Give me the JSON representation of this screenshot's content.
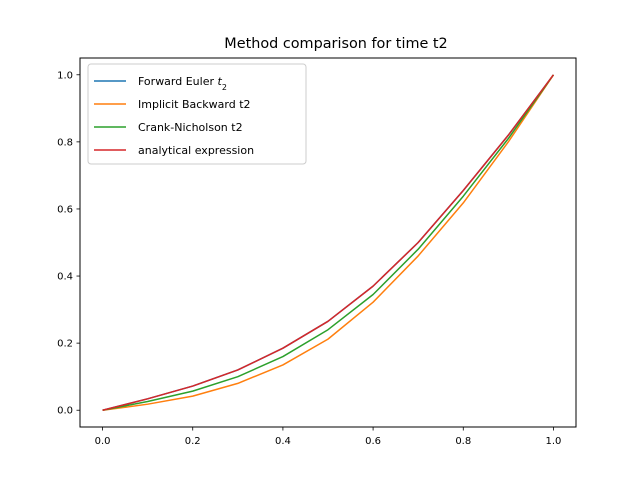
{
  "chart_data": {
    "type": "line",
    "title": "Method comparison for time t2",
    "xlabel": "",
    "ylabel": "",
    "xlim": [
      -0.05,
      1.05
    ],
    "ylim": [
      -0.05,
      1.05
    ],
    "xticks": [
      0.0,
      0.2,
      0.4,
      0.6,
      0.8,
      1.0
    ],
    "yticks": [
      0.0,
      0.2,
      0.4,
      0.6,
      0.8,
      1.0
    ],
    "xtick_labels": [
      "0.0",
      "0.2",
      "0.4",
      "0.6",
      "0.8",
      "1.0"
    ],
    "ytick_labels": [
      "0.0",
      "0.2",
      "0.4",
      "0.6",
      "0.8",
      "1.0"
    ],
    "grid": false,
    "legend": "upper-left",
    "x": [
      0.0,
      0.1,
      0.2,
      0.3,
      0.4,
      0.5,
      0.6,
      0.7,
      0.8,
      0.9,
      1.0
    ],
    "series": [
      {
        "name": "Forward Euler t",
        "subscript": "2",
        "color": "#1f77b4",
        "values": [
          0.0,
          0.034,
          0.072,
          0.12,
          0.185,
          0.265,
          0.37,
          0.5,
          0.655,
          0.82,
          1.0
        ]
      },
      {
        "name": "Implicit Backward t2",
        "color": "#ff7f0e",
        "values": [
          0.0,
          0.018,
          0.042,
          0.08,
          0.135,
          0.212,
          0.322,
          0.46,
          0.618,
          0.8,
          1.0
        ]
      },
      {
        "name": "Crank-Nicholson t2",
        "color": "#2ca02c",
        "values": [
          0.0,
          0.026,
          0.057,
          0.1,
          0.16,
          0.24,
          0.345,
          0.48,
          0.638,
          0.81,
          1.0
        ]
      },
      {
        "name": "analytical expression",
        "color": "#d62728",
        "values": [
          0.0,
          0.034,
          0.072,
          0.12,
          0.185,
          0.265,
          0.37,
          0.5,
          0.655,
          0.82,
          1.0
        ]
      }
    ]
  }
}
